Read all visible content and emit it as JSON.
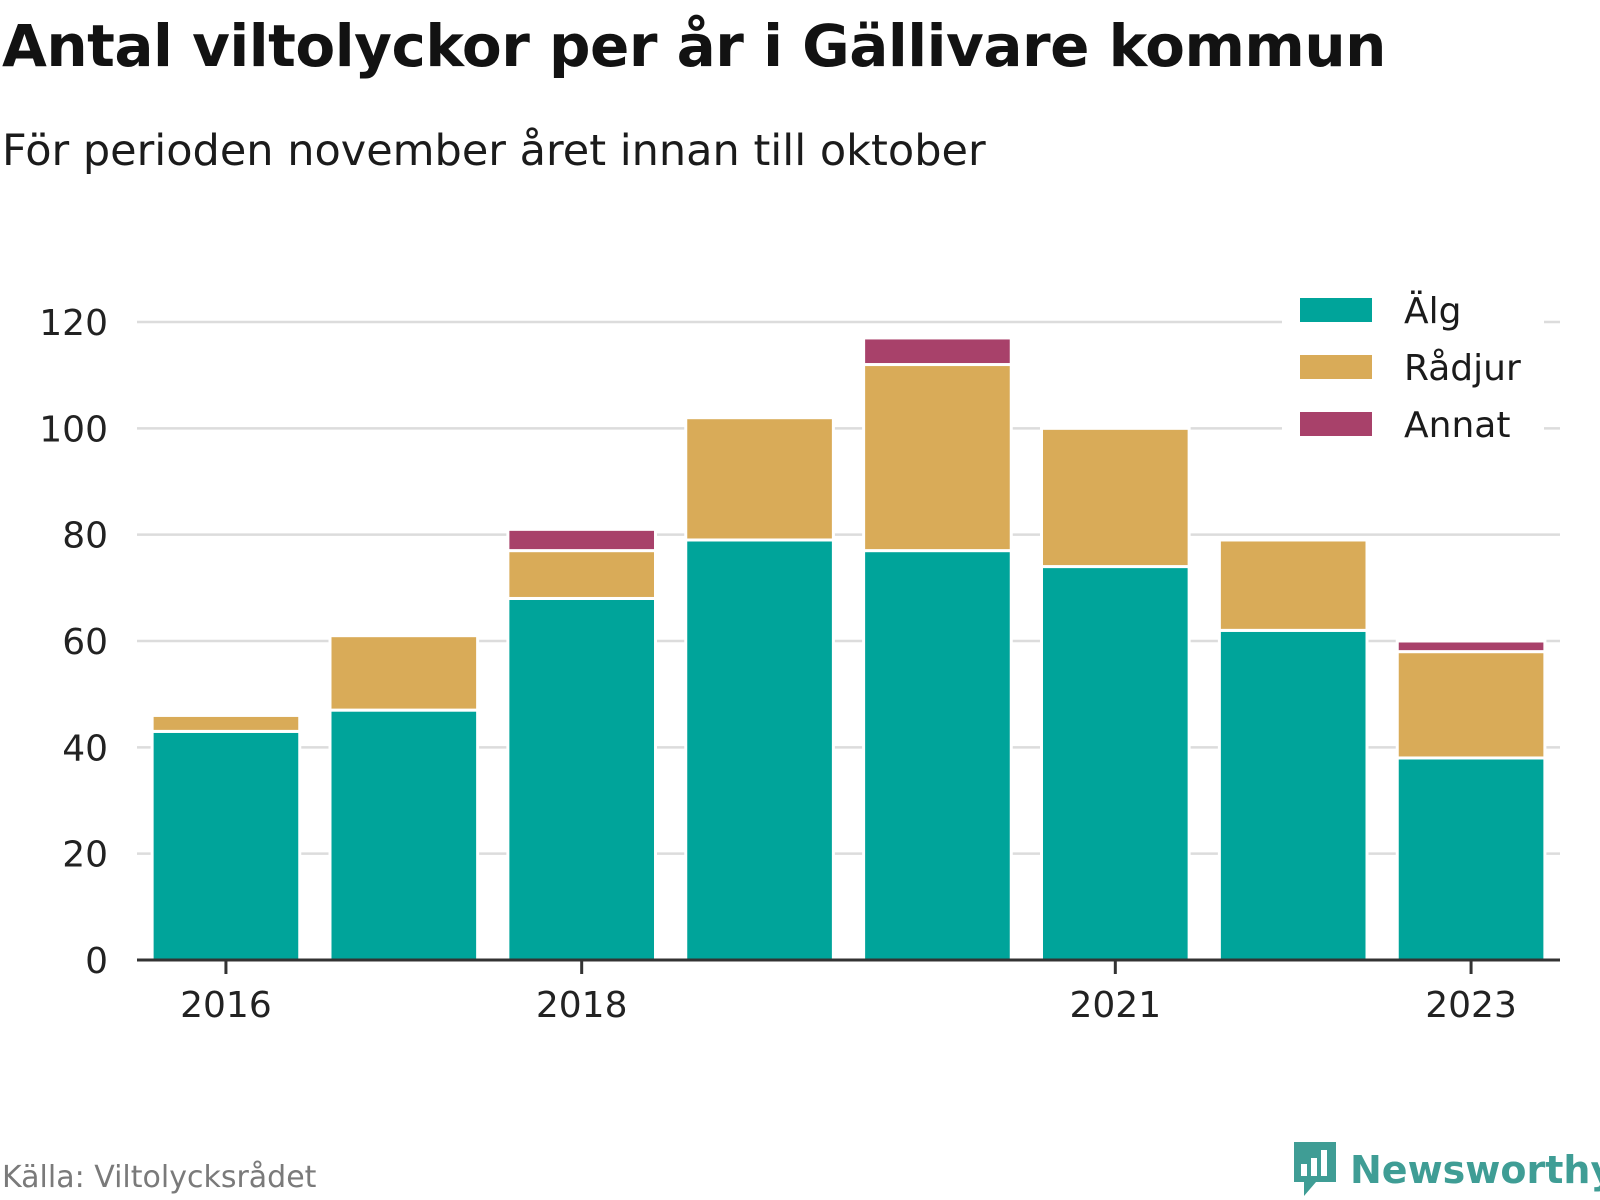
{
  "title": "Antal viltolyckor per år i Gällivare kommun",
  "subtitle": "För perioden november året innan till oktober",
  "source": "Källa: Viltolycksrådet",
  "brand": "Newsworthy",
  "brand_color": "#3f9d95",
  "chart_data": {
    "type": "bar",
    "stacked": true,
    "x": [
      2016,
      2017,
      2018,
      2019,
      2020,
      2021,
      2022,
      2023
    ],
    "xticks": [
      "2016",
      "2018",
      "2021",
      "2023"
    ],
    "yticks": [
      "0",
      "20",
      "40",
      "60",
      "80",
      "100",
      "120"
    ],
    "ylim": [
      0,
      120
    ],
    "grid": true,
    "legend_position": "top-right",
    "series": [
      {
        "name": "Älg",
        "color": "#00a49a",
        "values": [
          43,
          47,
          68,
          79,
          77,
          74,
          62,
          38
        ]
      },
      {
        "name": "Rådjur",
        "color": "#d9ab58",
        "values": [
          3,
          14,
          9,
          23,
          35,
          26,
          17,
          20
        ]
      },
      {
        "name": "Annat",
        "color": "#a8416a",
        "values": [
          0,
          0,
          4,
          0,
          5,
          0,
          0,
          2
        ]
      }
    ]
  }
}
